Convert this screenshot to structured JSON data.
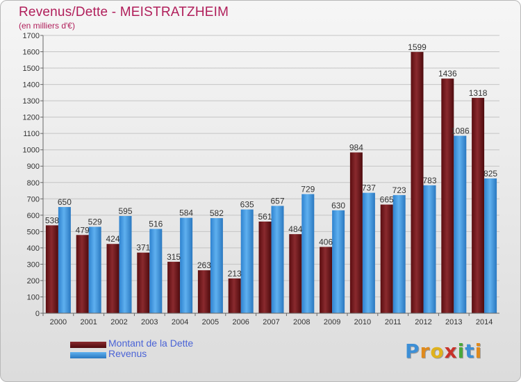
{
  "title": "Revenus/Dette - MEISTRATZHEIM",
  "subtitle": "(en milliers d'€)",
  "logo": {
    "text": "Proxiti",
    "letters": [
      "P",
      "r",
      "o",
      "x",
      "i",
      "t",
      "i"
    ]
  },
  "colors": {
    "dette": "#6b1114",
    "revenus": "#3d96e0",
    "title": "#b01e5a",
    "legend_text": "#4a63d6"
  },
  "chart_data": {
    "type": "bar",
    "title": "Revenus/Dette - MEISTRATZHEIM",
    "subtitle": "(en milliers d'€)",
    "xlabel": "",
    "ylabel": "",
    "ylim": [
      0,
      1700
    ],
    "yticks": [
      0,
      100,
      200,
      300,
      400,
      500,
      600,
      700,
      800,
      900,
      1000,
      1100,
      1200,
      1300,
      1400,
      1500,
      1600,
      1700
    ],
    "grid": true,
    "legend_position": "bottom-left",
    "categories": [
      "2000",
      "2001",
      "2002",
      "2003",
      "2004",
      "2005",
      "2006",
      "2007",
      "2008",
      "2009",
      "2010",
      "2011",
      "2012",
      "2013",
      "2014"
    ],
    "series": [
      {
        "name": "Montant de la Dette",
        "color": "#6b1114",
        "values": [
          538,
          479,
          424,
          371,
          315,
          263,
          213,
          561,
          484,
          406,
          984,
          665,
          1599,
          1436,
          1318
        ]
      },
      {
        "name": "Revenus",
        "color": "#3d96e0",
        "values": [
          650,
          529,
          595,
          516,
          584,
          582,
          635,
          657,
          729,
          630,
          737,
          723,
          783,
          1086,
          825
        ]
      }
    ]
  }
}
